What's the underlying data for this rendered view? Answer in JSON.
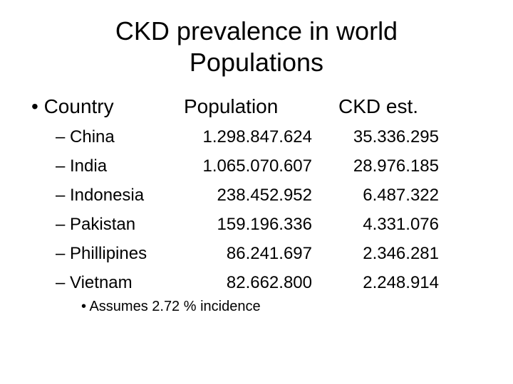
{
  "title_lines": [
    "CKD prevalence in world",
    "Populations"
  ],
  "header": {
    "country": "• Country",
    "population": "Population",
    "ckd": "CKD est."
  },
  "rows": [
    {
      "country": "– China",
      "population": "1.298.847.624",
      "ckd": "35.336.295"
    },
    {
      "country": "– India",
      "population": "1.065.070.607",
      "ckd": "28.976.185"
    },
    {
      "country": "– Indonesia",
      "population": "238.452.952",
      "ckd": "6.487.322"
    },
    {
      "country": "– Pakistan",
      "population": "159.196.336",
      "ckd": "4.331.076"
    },
    {
      "country": "– Phillipines",
      "population": "86.241.697",
      "ckd": "2.346.281"
    },
    {
      "country": "– Vietnam",
      "population": "82.662.800",
      "ckd": "2.248.914"
    }
  ],
  "note": "• Assumes 2.72 % incidence"
}
